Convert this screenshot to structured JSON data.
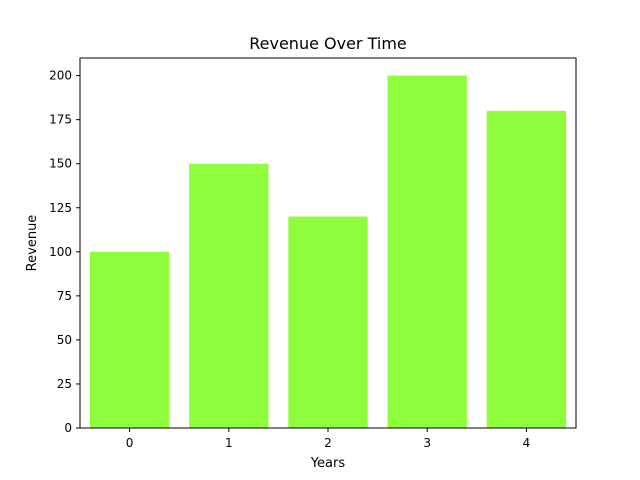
{
  "chart_data": {
    "type": "bar",
    "title": "Revenue Over Time",
    "xlabel": "Years",
    "ylabel": "Revenue",
    "categories": [
      "0",
      "1",
      "2",
      "3",
      "4"
    ],
    "values": [
      100,
      150,
      120,
      200,
      180
    ],
    "ylim": [
      0,
      210
    ],
    "yticks": [
      0,
      25,
      50,
      75,
      100,
      125,
      150,
      175,
      200
    ],
    "xlim": [
      -0.5,
      4.5
    ],
    "bar_width": 0.8,
    "bar_color": "#8ffc3c",
    "grid": false,
    "legend": "none"
  }
}
